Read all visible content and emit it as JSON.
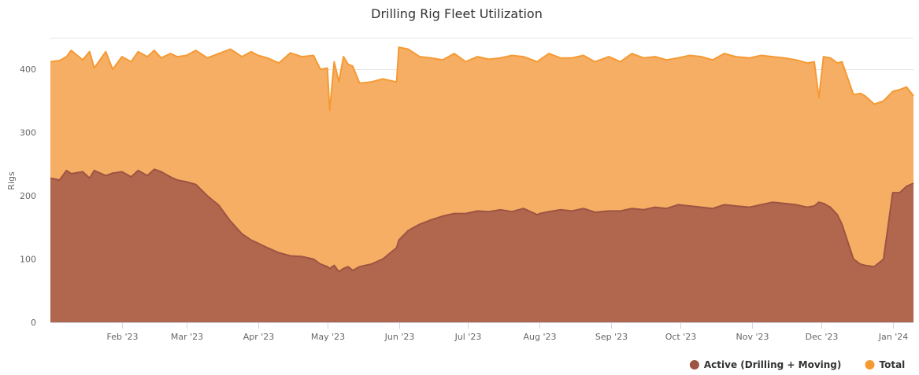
{
  "chart_data": {
    "type": "area",
    "title": "Drilling Rig Fleet Utilization",
    "xlabel": "",
    "ylabel": "Rigs",
    "xlim": [
      "2023-01-01",
      "2024-01-10"
    ],
    "ylim": [
      0,
      450
    ],
    "yticks": [
      0,
      100,
      200,
      300,
      400
    ],
    "xticks": [
      {
        "date": "2023-02-01",
        "label": "Feb '23"
      },
      {
        "date": "2023-03-01",
        "label": "Mar '23"
      },
      {
        "date": "2023-04-01",
        "label": "Apr '23"
      },
      {
        "date": "2023-05-01",
        "label": "May '23"
      },
      {
        "date": "2023-06-01",
        "label": "Jun '23"
      },
      {
        "date": "2023-07-01",
        "label": "Jul '23"
      },
      {
        "date": "2023-08-01",
        "label": "Aug '23"
      },
      {
        "date": "2023-09-01",
        "label": "Sep '23"
      },
      {
        "date": "2023-10-01",
        "label": "Oct '23"
      },
      {
        "date": "2023-11-01",
        "label": "Nov '23"
      },
      {
        "date": "2023-12-01",
        "label": "Dec '23"
      },
      {
        "date": "2024-01-01",
        "label": "Jan '24"
      }
    ],
    "grid": true,
    "legend_position": "bottom-right",
    "series": [
      {
        "name": "Total",
        "color": "#f59a33",
        "fill": "#f5ae64",
        "x": [
          "2023-01-01",
          "2023-01-05",
          "2023-01-08",
          "2023-01-10",
          "2023-01-15",
          "2023-01-18",
          "2023-01-20",
          "2023-01-25",
          "2023-01-28",
          "2023-02-01",
          "2023-02-05",
          "2023-02-08",
          "2023-02-12",
          "2023-02-15",
          "2023-02-18",
          "2023-02-22",
          "2023-02-25",
          "2023-03-01",
          "2023-03-05",
          "2023-03-10",
          "2023-03-15",
          "2023-03-20",
          "2023-03-25",
          "2023-03-29",
          "2023-04-01",
          "2023-04-05",
          "2023-04-10",
          "2023-04-15",
          "2023-04-20",
          "2023-04-25",
          "2023-04-28",
          "2023-05-01",
          "2023-05-02",
          "2023-05-04",
          "2023-05-06",
          "2023-05-08",
          "2023-05-10",
          "2023-05-12",
          "2023-05-15",
          "2023-05-20",
          "2023-05-25",
          "2023-05-31",
          "2023-06-01",
          "2023-06-05",
          "2023-06-10",
          "2023-06-15",
          "2023-06-20",
          "2023-06-25",
          "2023-06-30",
          "2023-07-05",
          "2023-07-10",
          "2023-07-15",
          "2023-07-20",
          "2023-07-25",
          "2023-07-31",
          "2023-08-01",
          "2023-08-05",
          "2023-08-10",
          "2023-08-15",
          "2023-08-20",
          "2023-08-25",
          "2023-08-31",
          "2023-09-05",
          "2023-09-10",
          "2023-09-15",
          "2023-09-20",
          "2023-09-25",
          "2023-09-30",
          "2023-10-05",
          "2023-10-10",
          "2023-10-15",
          "2023-10-20",
          "2023-10-25",
          "2023-10-31",
          "2023-11-05",
          "2023-11-10",
          "2023-11-15",
          "2023-11-20",
          "2023-11-25",
          "2023-11-28",
          "2023-11-30",
          "2023-12-02",
          "2023-12-05",
          "2023-12-08",
          "2023-12-10",
          "2023-12-15",
          "2023-12-18",
          "2023-12-20",
          "2023-12-24",
          "2023-12-28",
          "2024-01-01",
          "2024-01-04",
          "2024-01-07",
          "2024-01-10"
        ],
        "values": [
          412,
          414,
          420,
          430,
          415,
          428,
          402,
          428,
          400,
          420,
          412,
          428,
          420,
          430,
          418,
          425,
          420,
          422,
          430,
          418,
          425,
          432,
          420,
          428,
          422,
          418,
          410,
          426,
          420,
          422,
          400,
          402,
          335,
          412,
          380,
          420,
          408,
          405,
          378,
          380,
          385,
          380,
          435,
          432,
          420,
          418,
          415,
          425,
          412,
          420,
          416,
          418,
          422,
          420,
          412,
          415,
          425,
          418,
          418,
          422,
          412,
          420,
          412,
          425,
          418,
          420,
          415,
          418,
          422,
          420,
          415,
          425,
          420,
          418,
          422,
          420,
          418,
          415,
          410,
          412,
          355,
          420,
          418,
          410,
          412,
          360,
          362,
          358,
          345,
          350,
          365,
          368,
          372,
          358
        ]
      },
      {
        "name": "Active (Drilling + Moving)",
        "color": "#9e5443",
        "fill": "#b0674d",
        "x": [
          "2023-01-01",
          "2023-01-05",
          "2023-01-08",
          "2023-01-10",
          "2023-01-15",
          "2023-01-18",
          "2023-01-20",
          "2023-01-25",
          "2023-01-28",
          "2023-02-01",
          "2023-02-05",
          "2023-02-08",
          "2023-02-12",
          "2023-02-15",
          "2023-02-18",
          "2023-02-22",
          "2023-02-25",
          "2023-03-01",
          "2023-03-05",
          "2023-03-10",
          "2023-03-15",
          "2023-03-20",
          "2023-03-25",
          "2023-03-29",
          "2023-04-01",
          "2023-04-05",
          "2023-04-10",
          "2023-04-15",
          "2023-04-20",
          "2023-04-25",
          "2023-04-28",
          "2023-05-01",
          "2023-05-02",
          "2023-05-04",
          "2023-05-06",
          "2023-05-08",
          "2023-05-10",
          "2023-05-12",
          "2023-05-15",
          "2023-05-20",
          "2023-05-25",
          "2023-05-31",
          "2023-06-01",
          "2023-06-05",
          "2023-06-10",
          "2023-06-15",
          "2023-06-20",
          "2023-06-25",
          "2023-06-30",
          "2023-07-05",
          "2023-07-10",
          "2023-07-15",
          "2023-07-20",
          "2023-07-25",
          "2023-07-31",
          "2023-08-01",
          "2023-08-05",
          "2023-08-10",
          "2023-08-15",
          "2023-08-20",
          "2023-08-25",
          "2023-08-31",
          "2023-09-05",
          "2023-09-10",
          "2023-09-15",
          "2023-09-20",
          "2023-09-25",
          "2023-09-30",
          "2023-10-05",
          "2023-10-10",
          "2023-10-15",
          "2023-10-20",
          "2023-10-25",
          "2023-10-31",
          "2023-11-05",
          "2023-11-10",
          "2023-11-15",
          "2023-11-20",
          "2023-11-25",
          "2023-11-28",
          "2023-11-30",
          "2023-12-02",
          "2023-12-05",
          "2023-12-08",
          "2023-12-10",
          "2023-12-15",
          "2023-12-18",
          "2023-12-20",
          "2023-12-24",
          "2023-12-28",
          "2024-01-01",
          "2024-01-04",
          "2024-01-07",
          "2024-01-10"
        ],
        "values": [
          228,
          225,
          240,
          235,
          238,
          228,
          240,
          232,
          236,
          238,
          230,
          240,
          232,
          242,
          238,
          230,
          225,
          222,
          218,
          200,
          185,
          160,
          140,
          130,
          125,
          118,
          110,
          105,
          104,
          100,
          92,
          88,
          85,
          90,
          80,
          85,
          88,
          82,
          88,
          92,
          100,
          118,
          130,
          145,
          155,
          162,
          168,
          172,
          172,
          176,
          175,
          178,
          175,
          180,
          170,
          172,
          175,
          178,
          176,
          180,
          174,
          176,
          176,
          180,
          178,
          182,
          180,
          186,
          184,
          182,
          180,
          186,
          184,
          182,
          186,
          190,
          188,
          186,
          182,
          184,
          190,
          188,
          182,
          170,
          155,
          100,
          92,
          90,
          88,
          100,
          205,
          205,
          215,
          220
        ]
      }
    ]
  }
}
